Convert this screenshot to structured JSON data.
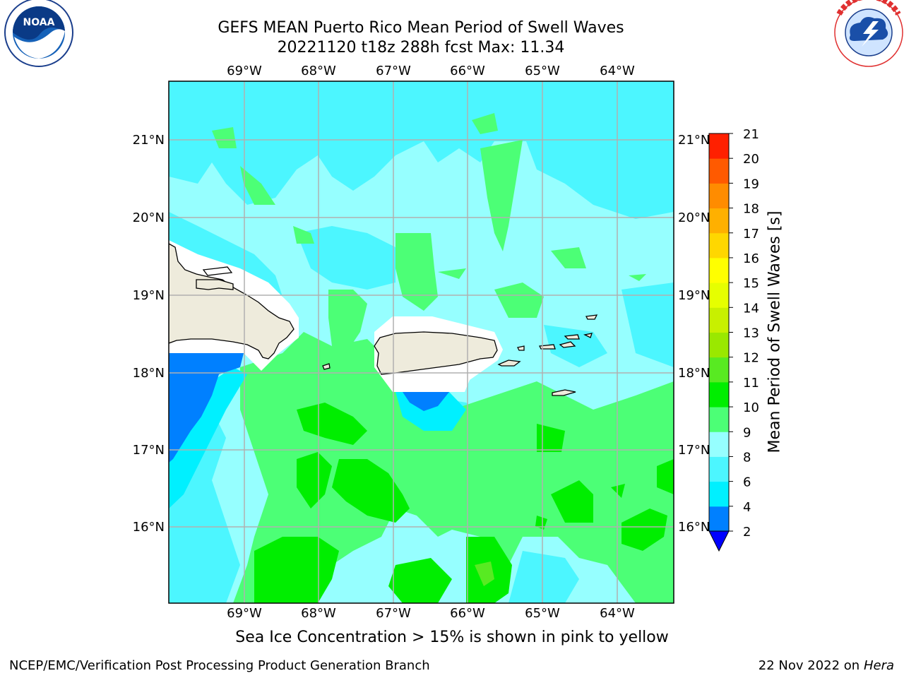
{
  "title": {
    "line1": "GEFS MEAN Puerto Rico Mean Period of Swell Waves",
    "line2": "20221120 t18z 288h fcst   Max: 11.34"
  },
  "logos": {
    "noaa": {
      "text": "NOAA",
      "ring_text": "NATIONAL OCEANIC AND ATMOSPHERIC ADMINISTRATION · U.S. DEPARTMENT OF COMMERCE"
    },
    "nws": {
      "ring_text": "NATIONAL WEATHER SERVICE"
    }
  },
  "map": {
    "lon_labels": [
      "69°W",
      "68°W",
      "67°W",
      "66°W",
      "65°W",
      "64°W"
    ],
    "lat_labels": [
      "21°N",
      "20°N",
      "19°N",
      "18°N",
      "17°N",
      "16°N"
    ],
    "colors": {
      "bg": "#96ffff",
      "cyan": "#4cf6ff",
      "cyan_bright": "#00f0ff",
      "green_light": "#4cff76",
      "green": "#00ee00",
      "green_yellow": "#58ea22",
      "blue": "#0080ff",
      "land": "#eeebdc",
      "mask": "#ffffff"
    }
  },
  "colorbar": {
    "label": "Mean Period of Swell Waves [s]",
    "ticks": [
      "2",
      "4",
      "6",
      "8",
      "9",
      "10",
      "11",
      "12",
      "13",
      "14",
      "15",
      "16",
      "17",
      "18",
      "19",
      "20",
      "21"
    ],
    "colors": [
      "#0000ff",
      "#0080ff",
      "#00f0ff",
      "#4cf6ff",
      "#96ffff",
      "#4cff76",
      "#00ee00",
      "#58ea22",
      "#9ae800",
      "#c8f000",
      "#e6ff00",
      "#ffff00",
      "#ffd700",
      "#ffb000",
      "#ff8c00",
      "#ff5a00",
      "#ff2000",
      "#ff0000"
    ]
  },
  "footer": {
    "note": "Sea Ice Concentration > 15% is shown in pink to yellow",
    "left": "NCEP/EMC/Verification Post Processing Product Generation Branch",
    "right_date": "22 Nov 2022 on",
    "right_host": "Hera"
  }
}
